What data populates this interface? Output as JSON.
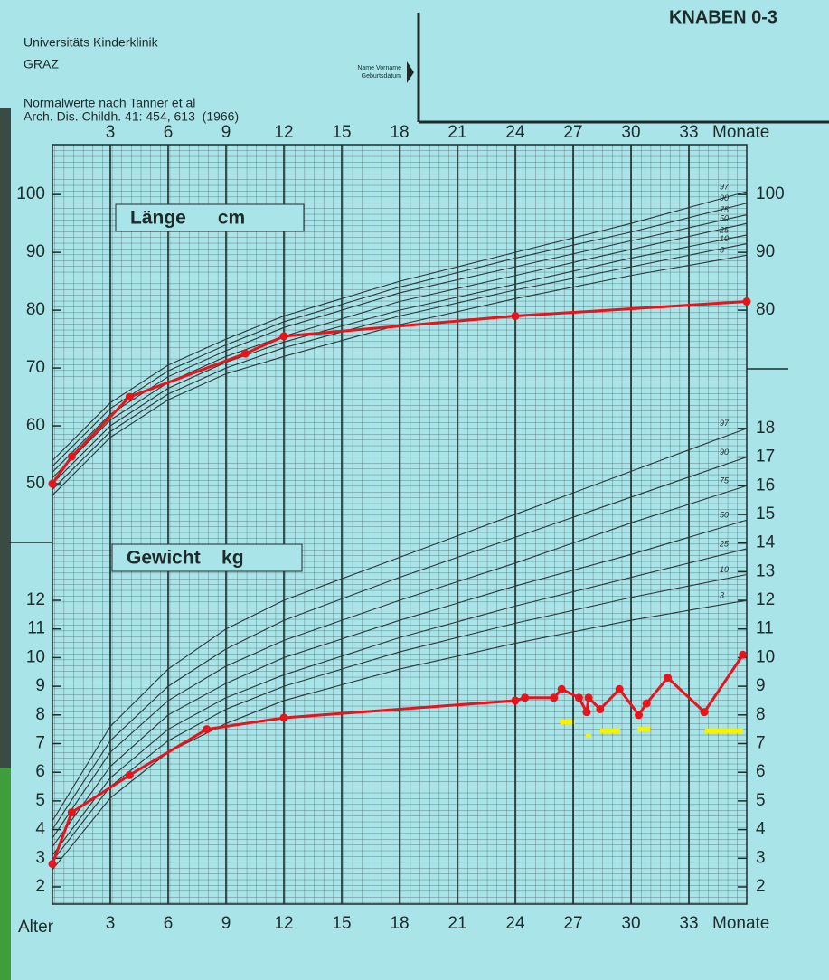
{
  "header": {
    "clinic": "Universitäts Kinderklinik",
    "city": "GRAZ",
    "reference": "Normalwerte nach Tanner et al",
    "citation": "Arch. Dis. Childh. 41: 454, 613  (1966)",
    "form_title": "KNABEN 0-3",
    "name_field": "Name Vorname",
    "birth_field": "Geburtsdatum"
  },
  "chart_data": [
    {
      "type": "line",
      "title": "Länge      cm",
      "xlabel": "Monate",
      "xlim": [
        0,
        36
      ],
      "xticks": [
        3,
        6,
        9,
        12,
        15,
        18,
        21,
        24,
        27,
        30,
        33
      ],
      "ylim": [
        40,
        108
      ],
      "yticks": [
        50,
        60,
        70,
        80,
        90,
        100
      ],
      "y2ticks": [
        80,
        90,
        100
      ],
      "x": [
        0,
        3,
        6,
        9,
        12,
        18,
        24,
        30,
        36
      ],
      "series": [
        {
          "name": "97",
          "color": "#2a3838",
          "values": [
            54,
            64,
            70.5,
            75,
            79,
            85,
            90,
            95,
            100.5
          ]
        },
        {
          "name": "90",
          "color": "#2a3838",
          "values": [
            53,
            63,
            69.5,
            74,
            78,
            84,
            89,
            93.5,
            98.5
          ]
        },
        {
          "name": "75",
          "color": "#2a3838",
          "values": [
            52,
            62,
            68.5,
            73,
            77,
            83,
            87.5,
            92,
            96.5
          ]
        },
        {
          "name": "50",
          "color": "#2a3838",
          "values": [
            51,
            61,
            67.5,
            72,
            75.5,
            81.5,
            86,
            90.5,
            95
          ]
        },
        {
          "name": "25",
          "color": "#2a3838",
          "values": [
            50,
            60,
            66.5,
            71,
            74.5,
            80,
            84.5,
            89,
            93
          ]
        },
        {
          "name": "10",
          "color": "#2a3838",
          "values": [
            49,
            59,
            65.5,
            70,
            73.5,
            79,
            83.5,
            87.5,
            91.5
          ]
        },
        {
          "name": "3",
          "color": "#2a3838",
          "values": [
            48,
            58,
            64.5,
            69,
            72,
            77.5,
            82,
            86,
            89.5
          ]
        },
        {
          "color": "#e8141c",
          "x": [
            0,
            1,
            4,
            10,
            12,
            24,
            36
          ],
          "values": [
            50,
            54.7,
            65,
            72.5,
            75.5,
            79,
            81.5
          ]
        }
      ]
    },
    {
      "type": "line",
      "title": "Gewicht    kg",
      "xlabel": "Monate",
      "xlabel_start": "Alter",
      "xlim": [
        0,
        36
      ],
      "xticks": [
        3,
        6,
        9,
        12,
        15,
        18,
        21,
        24,
        27,
        30,
        33
      ],
      "ylim": [
        1.4,
        18.5
      ],
      "yticks": [
        2,
        3,
        4,
        5,
        6,
        7,
        8,
        9,
        10,
        11,
        12
      ],
      "y2ticks": [
        2,
        3,
        4,
        5,
        6,
        7,
        8,
        9,
        10,
        11,
        12,
        13,
        14,
        15,
        16,
        17,
        18
      ],
      "x": [
        0,
        3,
        6,
        9,
        12,
        18,
        24,
        30,
        36
      ],
      "series": [
        {
          "name": "97",
          "color": "#2a3838",
          "values": [
            4.3,
            7.6,
            9.6,
            11,
            12,
            13.5,
            15,
            16.5,
            18
          ]
        },
        {
          "name": "90",
          "color": "#2a3838",
          "values": [
            4,
            7.1,
            9,
            10.3,
            11.3,
            12.8,
            14.2,
            15.6,
            17
          ]
        },
        {
          "name": "75",
          "color": "#2a3838",
          "values": [
            3.7,
            6.7,
            8.5,
            9.7,
            10.6,
            12,
            13.3,
            14.7,
            16
          ]
        },
        {
          "name": "50",
          "color": "#2a3838",
          "values": [
            3.4,
            6.2,
            8,
            9.1,
            10,
            11.3,
            12.5,
            13.6,
            14.8
          ]
        },
        {
          "name": "25",
          "color": "#2a3838",
          "values": [
            3.1,
            5.8,
            7.5,
            8.6,
            9.4,
            10.7,
            11.8,
            12.8,
            13.8
          ]
        },
        {
          "name": "10",
          "color": "#2a3838",
          "values": [
            2.9,
            5.5,
            7.1,
            8.2,
            9,
            10.2,
            11.2,
            12.1,
            12.9
          ]
        },
        {
          "name": "3",
          "color": "#2a3838",
          "values": [
            2.6,
            5.1,
            6.7,
            7.7,
            8.5,
            9.6,
            10.5,
            11.3,
            12
          ]
        },
        {
          "color": "#e8141c",
          "x": [
            0,
            1,
            4,
            8,
            12,
            24,
            24.5,
            26,
            26.4,
            27.3,
            27.7,
            27.8,
            28.4,
            29.4,
            30.4,
            30.8,
            31.9,
            33.8,
            35.8
          ],
          "values": [
            2.8,
            4.6,
            5.9,
            7.5,
            7.9,
            8.5,
            8.6,
            8.6,
            8.9,
            8.6,
            8.1,
            8.6,
            8.2,
            8.9,
            8.0,
            8.4,
            9.3,
            8.1,
            10.1
          ]
        }
      ]
    }
  ]
}
